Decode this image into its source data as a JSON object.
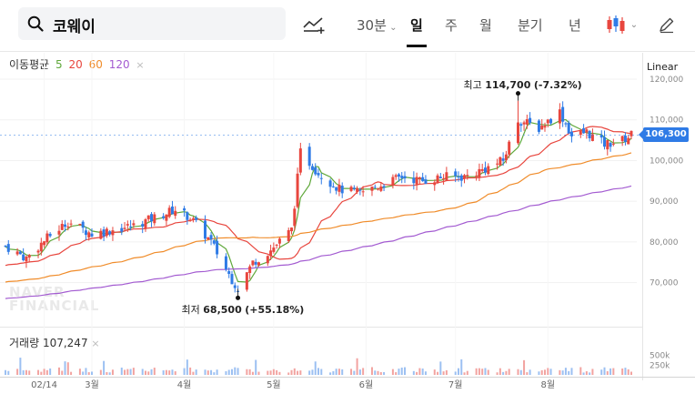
{
  "search": {
    "query": "코웨이"
  },
  "toolbar": {
    "compare_icon": "compare-chart-icon",
    "tabs": [
      "30분",
      "일",
      "주",
      "월",
      "분기",
      "년"
    ],
    "active_tab": "일",
    "chart_type_icon": "candlestick-icon",
    "edit_icon": "pencil-icon"
  },
  "legend": {
    "ma_title": "이동평균",
    "ma_periods": [
      {
        "label": "5",
        "color": "#5fa83a"
      },
      {
        "label": "20",
        "color": "#e8463e"
      },
      {
        "label": "60",
        "color": "#f08c2a"
      },
      {
        "label": "120",
        "color": "#a35bd1"
      }
    ],
    "close": "×",
    "scale_mode": "Linear",
    "volume_title": "거래량",
    "volume_value": "107,247"
  },
  "watermark": {
    "line1": "NAVER",
    "line2": "FINANCIAL"
  },
  "annotations": {
    "high_prefix": "최고",
    "high_value": "114,700",
    "high_change": "(-7.32%)",
    "low_prefix": "최저",
    "low_value": "68,500",
    "low_change": "(+55.18%)"
  },
  "current_price": "106,300",
  "colors": {
    "up": "#e8463e",
    "down": "#2f7be6",
    "accent": "#2f7be6"
  },
  "chart_data": {
    "type": "candlestick",
    "title": "",
    "y_ticks": [
      "120,000",
      "110,000",
      "100,000",
      "90,000",
      "80,000",
      "70,000"
    ],
    "y_tick_values": [
      120000,
      110000,
      100000,
      90000,
      80000,
      70000
    ],
    "ylim": [
      63000,
      122000
    ],
    "x_labels": [
      "02/14",
      "3월",
      "4월",
      "5월",
      "6월",
      "7월",
      "8월"
    ],
    "x_label_dates": [
      "2024-02-14",
      "2024-03-01",
      "2024-04-01",
      "2024-05-01",
      "2024-06-01",
      "2024-07-01",
      "2024-08-01"
    ],
    "date_range": [
      "2024-02-01",
      "2024-08-29"
    ],
    "volume_ticks": [
      "500k",
      "250k"
    ],
    "volume_tick_values": [
      500000,
      250000
    ],
    "volume_max": 700000,
    "anchors": [
      {
        "date": "2024-02-01",
        "close": 79000
      },
      {
        "date": "2024-02-08",
        "close": 76000
      },
      {
        "date": "2024-02-15",
        "close": 81000
      },
      {
        "date": "2024-02-22",
        "close": 85000
      },
      {
        "date": "2024-03-01",
        "close": 82000
      },
      {
        "date": "2024-03-08",
        "close": 83000
      },
      {
        "date": "2024-03-15",
        "close": 84000
      },
      {
        "date": "2024-03-22",
        "close": 86000
      },
      {
        "date": "2024-03-29",
        "close": 88000
      },
      {
        "date": "2024-04-03",
        "close": 86000
      },
      {
        "date": "2024-04-10",
        "close": 80000
      },
      {
        "date": "2024-04-16",
        "close": 72000
      },
      {
        "date": "2024-04-19",
        "close": 68500
      },
      {
        "date": "2024-04-24",
        "close": 75000
      },
      {
        "date": "2024-04-30",
        "close": 78000
      },
      {
        "date": "2024-05-07",
        "close": 83000
      },
      {
        "date": "2024-05-10",
        "close": 102000
      },
      {
        "date": "2024-05-16",
        "close": 97000
      },
      {
        "date": "2024-05-23",
        "close": 93000
      },
      {
        "date": "2024-05-30",
        "close": 92000
      },
      {
        "date": "2024-06-06",
        "close": 94000
      },
      {
        "date": "2024-06-13",
        "close": 96000
      },
      {
        "date": "2024-06-20",
        "close": 95000
      },
      {
        "date": "2024-06-27",
        "close": 96000
      },
      {
        "date": "2024-07-04",
        "close": 96000
      },
      {
        "date": "2024-07-11",
        "close": 98000
      },
      {
        "date": "2024-07-17",
        "close": 100000
      },
      {
        "date": "2024-07-22",
        "close": 110000
      },
      {
        "date": "2024-07-29",
        "close": 108000
      },
      {
        "date": "2024-08-05",
        "close": 112000
      },
      {
        "date": "2024-08-09",
        "close": 106000
      },
      {
        "date": "2024-08-14",
        "close": 107000
      },
      {
        "date": "2024-08-20",
        "close": 104000
      },
      {
        "date": "2024-08-26",
        "close": 105000
      },
      {
        "date": "2024-08-29",
        "close": 106300
      }
    ],
    "moving_averages": [
      {
        "name": "5",
        "color": "#5fa83a"
      },
      {
        "name": "20",
        "color": "#e8463e"
      },
      {
        "name": "60",
        "color": "#f08c2a"
      },
      {
        "name": "120",
        "color": "#a35bd1"
      }
    ],
    "high": {
      "date": "2024-07-22",
      "value": 114700
    },
    "low": {
      "date": "2024-04-19",
      "value": 68500
    }
  }
}
